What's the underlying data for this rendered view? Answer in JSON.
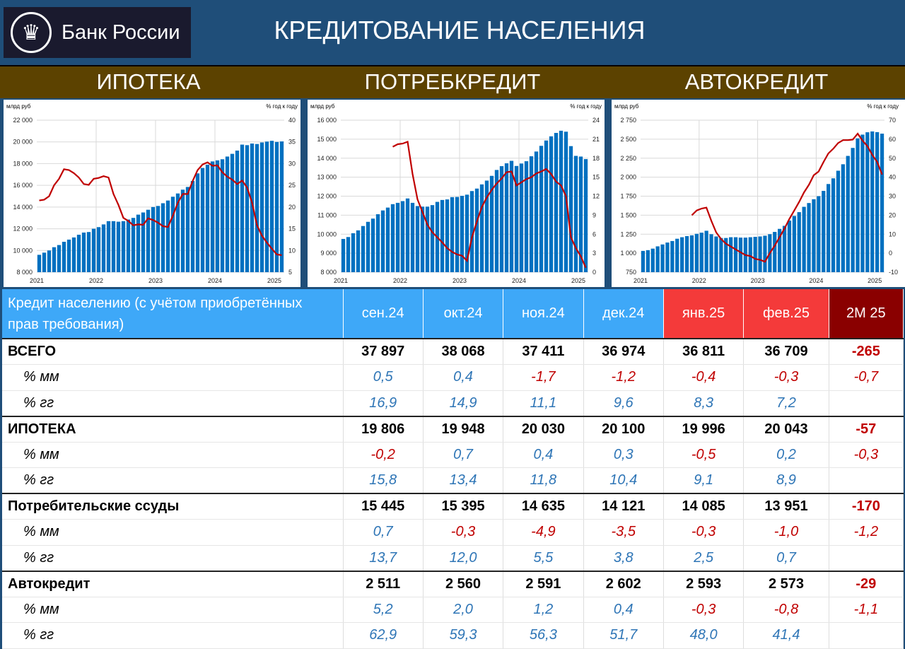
{
  "header": {
    "logo_text": "Банк России",
    "title": "КРЕДИТОВАНИЕ НАСЕЛЕНИЯ"
  },
  "sections": [
    "ИПОТЕКА",
    "ПОТРЕБКРЕДИТ",
    "АВТОКРЕДИТ"
  ],
  "colors": {
    "bars": "#0070c0",
    "line": "#c00000",
    "header_blue": "#3ea8f8",
    "header_red": "#f43a3a",
    "header_darkred": "#8a0000",
    "positive": "#2e75b6",
    "negative": "#c00000"
  },
  "chart_data": [
    {
      "type": "bar+line",
      "left_label": "млрд  руб",
      "right_label": "% год к году",
      "x_ticks": [
        "2021",
        "2022",
        "2023",
        "2024",
        "2025"
      ],
      "ylim": [
        8000,
        22000
      ],
      "yticks": [
        "8 000",
        "10 000",
        "12 000",
        "14 000",
        "16 000",
        "18 000",
        "20 000",
        "22 000"
      ],
      "y2lim": [
        5,
        40
      ],
      "y2ticks": [
        "5",
        "10",
        "15",
        "20",
        "25",
        "30",
        "35",
        "40"
      ],
      "grid": true,
      "bar_values": [
        9600,
        9800,
        10000,
        10300,
        10500,
        10800,
        11000,
        11200,
        11450,
        11650,
        11700,
        12000,
        12150,
        12400,
        12700,
        12700,
        12650,
        12700,
        12850,
        13000,
        13300,
        13500,
        13750,
        14000,
        14100,
        14350,
        14600,
        14950,
        15250,
        15600,
        15850,
        16400,
        17100,
        17600,
        17900,
        18200,
        18300,
        18400,
        18650,
        18900,
        19200,
        19750,
        19700,
        19850,
        19806,
        19948,
        20030,
        20100,
        19996,
        20043
      ],
      "line_values": [
        21.5,
        21.7,
        22.5,
        25,
        26.5,
        28.7,
        28.5,
        27.8,
        26.8,
        25.3,
        25.1,
        26.5,
        26.7,
        27.1,
        26.8,
        23,
        20.5,
        17.5,
        16.8,
        15.8,
        16,
        15.9,
        17.4,
        17,
        16.4,
        15.6,
        15.4,
        18,
        21,
        23,
        23,
        26,
        28.5,
        29.8,
        30.3,
        29.5,
        29.6,
        28,
        27,
        26.3,
        25.3,
        26.1,
        24.5,
        21,
        15.8,
        13.4,
        11.8,
        10.4,
        9.1,
        8.9
      ]
    },
    {
      "type": "bar+line",
      "left_label": "млрд  руб",
      "right_label": "% год к году",
      "x_ticks": [
        "2021",
        "2022",
        "2023",
        "2024",
        "2025"
      ],
      "ylim": [
        8000,
        16000
      ],
      "yticks": [
        "8 000",
        "9 000",
        "10 000",
        "11 000",
        "12 000",
        "13 000",
        "14 000",
        "15 000",
        "16 000"
      ],
      "y2lim": [
        0,
        24
      ],
      "y2ticks": [
        "0",
        "3",
        "6",
        "9",
        "12",
        "15",
        "18",
        "21",
        "24"
      ],
      "grid": true,
      "bar_values": [
        9750,
        9850,
        10050,
        10200,
        10430,
        10650,
        10820,
        11050,
        11250,
        11400,
        11580,
        11650,
        11740,
        11880,
        11650,
        11480,
        11450,
        11450,
        11530,
        11700,
        11800,
        11830,
        11950,
        11960,
        12020,
        12080,
        12270,
        12400,
        12620,
        12820,
        13070,
        13380,
        13580,
        13730,
        13860,
        13590,
        13720,
        13840,
        14100,
        14350,
        14650,
        14930,
        15150,
        15330,
        15445,
        15395,
        14635,
        14121,
        14085,
        13951
      ],
      "line_values": [
        null,
        null,
        null,
        null,
        null,
        null,
        null,
        null,
        null,
        null,
        19.8,
        20.2,
        20.3,
        20.6,
        15.5,
        11.5,
        9.5,
        7.5,
        6.3,
        5.5,
        4.7,
        3.8,
        3.2,
        2.8,
        2.6,
        1.8,
        5.5,
        8,
        10.3,
        11.8,
        13,
        14,
        14.8,
        15.8,
        15.9,
        13.7,
        14.2,
        14.7,
        15,
        15.6,
        15.9,
        16.3,
        15.5,
        14.3,
        13.7,
        12.0,
        5.5,
        3.8,
        2.5,
        0.7
      ]
    },
    {
      "type": "bar+line",
      "left_label": "млрд  руб",
      "right_label": "% год к году",
      "x_ticks": [
        "2021",
        "2022",
        "2023",
        "2024",
        "2025"
      ],
      "ylim": [
        750,
        2750
      ],
      "yticks": [
        "750",
        "1 000",
        "1 250",
        "1 500",
        "1 750",
        "2 000",
        "2 250",
        "2 500",
        "2 750"
      ],
      "y2lim": [
        -10,
        70
      ],
      "y2ticks": [
        "-10",
        "0",
        "10",
        "20",
        "30",
        "40",
        "50",
        "60",
        "70"
      ],
      "grid": true,
      "bar_values": [
        1030,
        1040,
        1060,
        1090,
        1115,
        1140,
        1160,
        1190,
        1210,
        1225,
        1235,
        1255,
        1270,
        1295,
        1250,
        1220,
        1200,
        1200,
        1210,
        1210,
        1205,
        1205,
        1210,
        1215,
        1220,
        1230,
        1250,
        1280,
        1320,
        1360,
        1430,
        1490,
        1540,
        1610,
        1660,
        1710,
        1750,
        1820,
        1910,
        1985,
        2085,
        2170,
        2280,
        2385,
        2511,
        2560,
        2591,
        2602,
        2593,
        2573
      ],
      "line_values": [
        null,
        null,
        null,
        null,
        null,
        null,
        null,
        null,
        null,
        null,
        20,
        22.5,
        23.5,
        24,
        17,
        11,
        7.5,
        5,
        3.5,
        2,
        0.5,
        -1,
        -1.5,
        -3,
        -3.5,
        -4.5,
        0,
        4,
        8.5,
        13,
        18,
        22.5,
        27,
        32,
        36,
        41,
        43,
        48,
        52.5,
        55,
        58,
        59.5,
        59.5,
        59.8,
        62.9,
        59.3,
        56.3,
        51.7,
        48.0,
        41.4
      ]
    }
  ],
  "table": {
    "header_label": "Кредит населению (с учётом приобретённых прав требования)",
    "columns": [
      "сен.24",
      "окт.24",
      "ноя.24",
      "дек.24",
      "янв.25",
      "фев.25",
      "2М 25"
    ],
    "rows": [
      {
        "label": "ВСЕГО",
        "type": "main",
        "values": [
          "37 897",
          "38 068",
          "37 411",
          "36 974",
          "36 811",
          "36 709",
          "-265"
        ]
      },
      {
        "label": "% мм",
        "type": "sub",
        "values": [
          "0,5",
          "0,4",
          "-1,7",
          "-1,2",
          "-0,4",
          "-0,3",
          "-0,7"
        ]
      },
      {
        "label": "% гг",
        "type": "sub",
        "values": [
          "16,9",
          "14,9",
          "11,1",
          "9,6",
          "8,3",
          "7,2",
          ""
        ]
      },
      {
        "label": "ИПОТЕКА",
        "type": "main",
        "values": [
          "19 806",
          "19 948",
          "20 030",
          "20 100",
          "19 996",
          "20 043",
          "-57"
        ]
      },
      {
        "label": "% мм",
        "type": "sub",
        "values": [
          "-0,2",
          "0,7",
          "0,4",
          "0,3",
          "-0,5",
          "0,2",
          "-0,3"
        ]
      },
      {
        "label": "% гг",
        "type": "sub",
        "values": [
          "15,8",
          "13,4",
          "11,8",
          "10,4",
          "9,1",
          "8,9",
          ""
        ]
      },
      {
        "label": "Потребительские ссуды",
        "type": "main",
        "values": [
          "15 445",
          "15 395",
          "14 635",
          "14 121",
          "14 085",
          "13 951",
          "-170"
        ]
      },
      {
        "label": "% мм",
        "type": "sub",
        "values": [
          "0,7",
          "-0,3",
          "-4,9",
          "-3,5",
          "-0,3",
          "-1,0",
          "-1,2"
        ]
      },
      {
        "label": "% гг",
        "type": "sub",
        "values": [
          "13,7",
          "12,0",
          "5,5",
          "3,8",
          "2,5",
          "0,7",
          ""
        ]
      },
      {
        "label": "Автокредит",
        "type": "main",
        "values": [
          "2 511",
          "2 560",
          "2 591",
          "2 602",
          "2 593",
          "2 573",
          "-29"
        ]
      },
      {
        "label": "% мм",
        "type": "sub",
        "values": [
          "5,2",
          "2,0",
          "1,2",
          "0,4",
          "-0,3",
          "-0,8",
          "-1,1"
        ]
      },
      {
        "label": "% гг",
        "type": "sub",
        "values": [
          "62,9",
          "59,3",
          "56,3",
          "51,7",
          "48,0",
          "41,4",
          ""
        ]
      }
    ]
  }
}
